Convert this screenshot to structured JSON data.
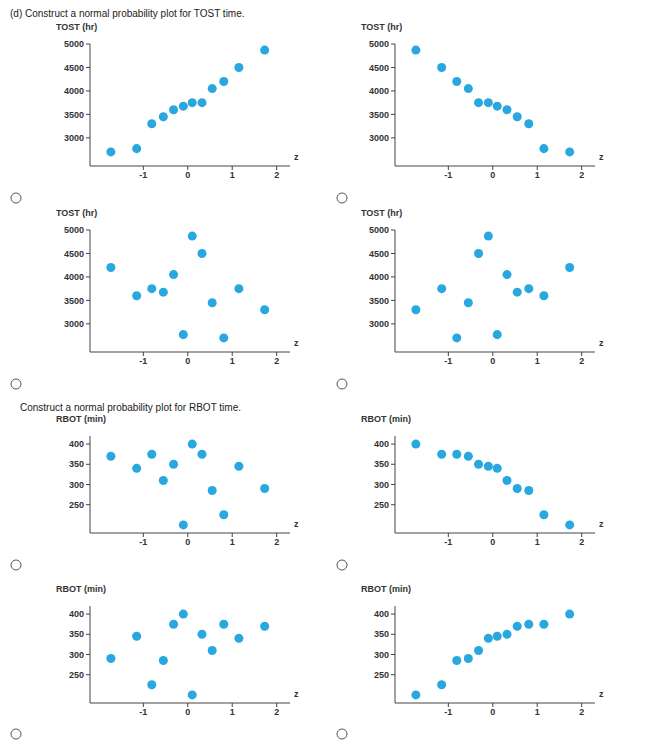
{
  "headings": [
    "(d) Construct a normal probability plot for TOST time.",
    "Construct a normal probability plot for RBOT time."
  ],
  "chart_data": [
    {
      "type": "scatter",
      "y_label": "TOST (hr)",
      "x_label": "z",
      "x": [
        -1.73,
        -1.15,
        -0.81,
        -0.55,
        -0.32,
        -0.1,
        0.1,
        0.32,
        0.55,
        0.81,
        1.15,
        1.73
      ],
      "values": [
        2700,
        2770,
        3300,
        3450,
        3600,
        3675,
        3750,
        3750,
        4050,
        4200,
        4500,
        4870
      ],
      "color": "#29a8e0",
      "marker": "circle",
      "grid": false,
      "xlim": [
        -2.2,
        2.3
      ],
      "xticks": [
        -1,
        0,
        1,
        2
      ],
      "ylim": [
        2400,
        5000
      ],
      "yticks": [
        3000,
        3500,
        4000,
        4500,
        5000
      ]
    },
    {
      "type": "scatter",
      "y_label": "TOST (hr)",
      "x_label": "z",
      "x": [
        -1.73,
        -1.15,
        -0.81,
        -0.55,
        -0.32,
        -0.1,
        0.1,
        0.32,
        0.55,
        0.81,
        1.15,
        1.73
      ],
      "values": [
        4870,
        4500,
        4200,
        4050,
        3750,
        3750,
        3675,
        3600,
        3450,
        3300,
        2770,
        2700
      ],
      "color": "#29a8e0",
      "marker": "circle",
      "grid": false,
      "xlim": [
        -2.2,
        2.3
      ],
      "xticks": [
        -1,
        0,
        1,
        2
      ],
      "ylim": [
        2400,
        5000
      ],
      "yticks": [
        3000,
        3500,
        4000,
        4500,
        5000
      ]
    },
    {
      "type": "scatter",
      "y_label": "TOST (hr)",
      "x_label": "z",
      "x": [
        -1.73,
        -1.15,
        -0.81,
        -0.55,
        -0.32,
        -0.1,
        0.1,
        0.32,
        0.55,
        0.81,
        1.15,
        1.73
      ],
      "values": [
        4200,
        3600,
        3750,
        3675,
        4050,
        2770,
        4870,
        4500,
        3450,
        2700,
        3750,
        3300
      ],
      "color": "#29a8e0",
      "marker": "circle",
      "grid": false,
      "xlim": [
        -2.2,
        2.3
      ],
      "xticks": [
        -1,
        0,
        1,
        2
      ],
      "ylim": [
        2400,
        5000
      ],
      "yticks": [
        3000,
        3500,
        4000,
        4500,
        5000
      ]
    },
    {
      "type": "scatter",
      "y_label": "TOST (hr)",
      "x_label": "z",
      "x": [
        -1.73,
        -1.15,
        -0.81,
        -0.55,
        -0.32,
        -0.1,
        0.1,
        0.32,
        0.55,
        0.81,
        1.15,
        1.73
      ],
      "values": [
        3300,
        3750,
        2700,
        3450,
        4500,
        4870,
        2770,
        4050,
        3675,
        3750,
        3600,
        4200
      ],
      "color": "#29a8e0",
      "marker": "circle",
      "grid": false,
      "xlim": [
        -2.2,
        2.3
      ],
      "xticks": [
        -1,
        0,
        1,
        2
      ],
      "ylim": [
        2400,
        5000
      ],
      "yticks": [
        3000,
        3500,
        4000,
        4500,
        5000
      ]
    },
    {
      "type": "scatter",
      "y_label": "RBOT (min)",
      "x_label": "z",
      "x": [
        -1.73,
        -1.15,
        -0.81,
        -0.55,
        -0.32,
        -0.1,
        0.1,
        0.32,
        0.55,
        0.81,
        1.15,
        1.73
      ],
      "values": [
        370,
        340,
        375,
        310,
        350,
        200,
        400,
        375,
        285,
        225,
        345,
        290
      ],
      "color": "#29a8e0",
      "marker": "circle",
      "grid": false,
      "xlim": [
        -2.2,
        2.3
      ],
      "xticks": [
        -1,
        0,
        1,
        2
      ],
      "ylim": [
        180,
        420
      ],
      "yticks": [
        250,
        300,
        350,
        400
      ]
    },
    {
      "type": "scatter",
      "y_label": "RBOT (min)",
      "x_label": "z",
      "x": [
        -1.73,
        -1.15,
        -0.81,
        -0.55,
        -0.32,
        -0.1,
        0.1,
        0.32,
        0.55,
        0.81,
        1.15,
        1.73
      ],
      "values": [
        400,
        375,
        375,
        370,
        350,
        345,
        340,
        310,
        290,
        285,
        225,
        200
      ],
      "color": "#29a8e0",
      "marker": "circle",
      "grid": false,
      "xlim": [
        -2.2,
        2.3
      ],
      "xticks": [
        -1,
        0,
        1,
        2
      ],
      "ylim": [
        180,
        420
      ],
      "yticks": [
        250,
        300,
        350,
        400
      ]
    },
    {
      "type": "scatter",
      "y_label": "RBOT (min)",
      "x_label": "z",
      "x": [
        -1.73,
        -1.15,
        -0.81,
        -0.55,
        -0.32,
        -0.1,
        0.1,
        0.32,
        0.55,
        0.81,
        1.15,
        1.73
      ],
      "values": [
        290,
        345,
        225,
        285,
        375,
        400,
        200,
        350,
        310,
        375,
        340,
        370
      ],
      "color": "#29a8e0",
      "marker": "circle",
      "grid": false,
      "xlim": [
        -2.2,
        2.3
      ],
      "xticks": [
        -1,
        0,
        1,
        2
      ],
      "ylim": [
        180,
        420
      ],
      "yticks": [
        250,
        300,
        350,
        400
      ]
    },
    {
      "type": "scatter",
      "y_label": "RBOT (min)",
      "x_label": "z",
      "x": [
        -1.73,
        -1.15,
        -0.81,
        -0.55,
        -0.32,
        -0.1,
        0.1,
        0.32,
        0.55,
        0.81,
        1.15,
        1.73
      ],
      "values": [
        200,
        225,
        285,
        290,
        310,
        340,
        345,
        350,
        370,
        375,
        375,
        400
      ],
      "color": "#29a8e0",
      "marker": "circle",
      "grid": false,
      "xlim": [
        -2.2,
        2.3
      ],
      "xticks": [
        -1,
        0,
        1,
        2
      ],
      "ylim": [
        180,
        420
      ],
      "yticks": [
        250,
        300,
        350,
        400
      ]
    }
  ]
}
